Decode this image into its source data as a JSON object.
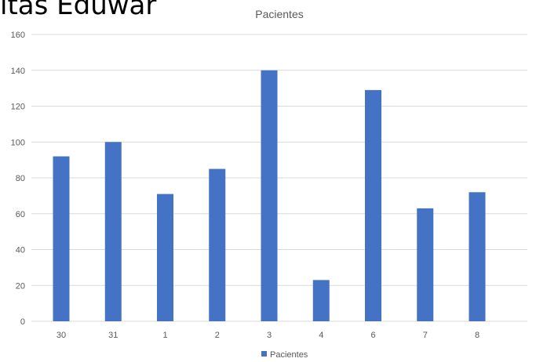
{
  "header": {
    "clipped_text": "itas Eduwar"
  },
  "chart_data": {
    "type": "bar",
    "title": "Pacientes",
    "xlabel": "",
    "ylabel": "",
    "categories": [
      "30",
      "31",
      "1",
      "2",
      "3",
      "4",
      "6",
      "7",
      "8"
    ],
    "series": [
      {
        "name": "Pacientes",
        "values": [
          92,
          100,
          71,
          85,
          140,
          23,
          129,
          63,
          72
        ]
      }
    ],
    "ylim": [
      0,
      160
    ],
    "yticks": [
      0,
      20,
      40,
      60,
      80,
      100,
      120,
      140,
      160
    ],
    "grid": true,
    "legend_position": "bottom",
    "colors": {
      "series": "#4472C4",
      "grid": "#D9D9D9",
      "axis_text": "#595959"
    }
  }
}
